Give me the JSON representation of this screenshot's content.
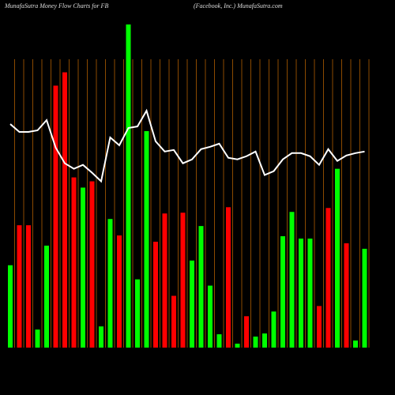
{
  "chart_data": {
    "type": "bar",
    "title": "MunafaSutra  Money Flow  Charts for FB",
    "subtitle": "(Facebook, Inc.) MunafaSutra.com",
    "values": [
      105,
      156,
      156,
      23,
      130,
      334,
      351,
      217,
      204,
      212,
      27,
      164,
      143,
      412,
      87,
      276,
      135,
      171,
      66,
      172,
      111,
      155,
      79,
      17,
      179,
      5,
      40,
      14,
      18,
      46,
      142,
      173,
      139,
      139,
      53,
      178,
      228,
      133,
      9,
      126
    ],
    "colors": [
      "#00ff00",
      "#ff0000",
      "#ff0000",
      "#00ff00",
      "#00ff00",
      "#ff0000",
      "#ff0000",
      "#ff0000",
      "#00ff00",
      "#ff0000",
      "#00ff00",
      "#00ff00",
      "#ff0000",
      "#00ff00",
      "#00ff00",
      "#00ff00",
      "#ff0000",
      "#ff0000",
      "#ff0000",
      "#ff0000",
      "#00ff00",
      "#00ff00",
      "#00ff00",
      "#00ff00",
      "#ff0000",
      "#00ff00",
      "#ff0000",
      "#00ff00",
      "#00ff00",
      "#00ff00",
      "#00ff00",
      "#00ff00",
      "#00ff00",
      "#00ff00",
      "#ff0000",
      "#ff0000",
      "#00ff00",
      "#ff0000",
      "#00ff00",
      "#00ff00"
    ],
    "line_values": [
      285,
      275,
      275,
      277,
      290,
      255,
      235,
      228,
      233,
      223,
      212,
      268,
      258,
      280,
      282,
      302,
      263,
      250,
      252,
      235,
      240,
      253,
      256,
      260,
      242,
      240,
      244,
      250,
      220,
      225,
      240,
      248,
      248,
      244,
      233,
      253,
      238,
      245,
      248,
      250
    ],
    "line_color": "#ffffff",
    "ylim": [
      0,
      415
    ],
    "grid": true,
    "grid_color": "#8b4a00"
  }
}
